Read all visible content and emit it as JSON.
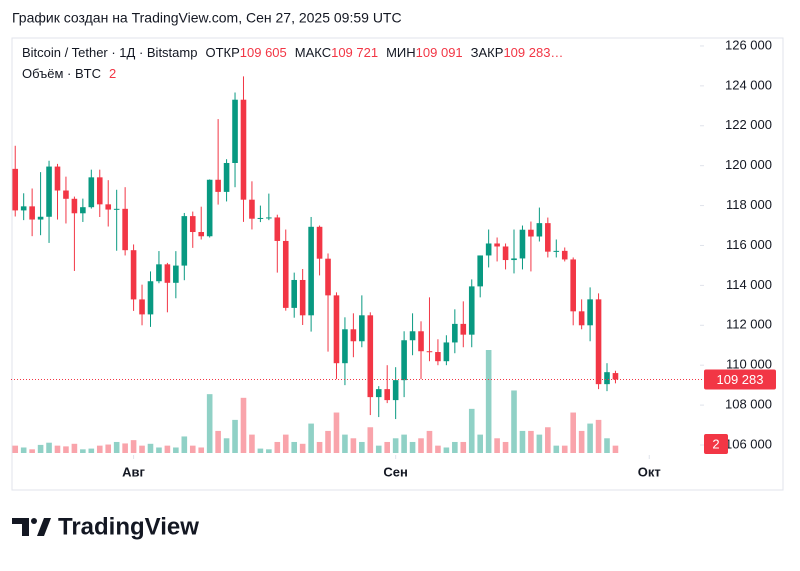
{
  "header": "График создан на TradingView.com, Сен 27, 2025 09:59 UTC",
  "footer": {
    "brand": "TradingView"
  },
  "chart_data": {
    "type": "candlestick",
    "legend": {
      "symbol": "Bitcoin / Tether · 1Д · Bitstamp",
      "open_label": "ОТКР",
      "open": "109 605",
      "high_label": "МАКС",
      "high": "109 721",
      "low_label": "МИН",
      "low": "109 091",
      "close_label": "ЗАКР",
      "close": "109 283…",
      "volume_label": "Объём · BTC"
    },
    "up_color": "#089981",
    "down_color": "#f23645",
    "open": [
      119840,
      117758,
      117961,
      117300,
      117439,
      119955,
      118755,
      118340,
      117614,
      117919,
      119415,
      118062,
      117800,
      117837,
      115764,
      113297,
      112546,
      114208,
      115055,
      114129,
      114992,
      117472,
      116675,
      116462,
      119294,
      118686,
      120134,
      123306,
      118295,
      117342,
      117380,
      117405,
      116227,
      112872,
      114271,
      112500,
      116936,
      115338,
      113500,
      110100,
      111800,
      111200,
      112500,
      108400,
      108800,
      108250,
      109250,
      111250,
      111700,
      110700,
      110660,
      110200,
      111140,
      112070,
      111530,
      113950,
      115500,
      116100,
      115950,
      115270,
      115350,
      116790,
      116450,
      117120,
      115690,
      115730,
      115300,
      112700,
      112000,
      113300,
      109050,
      109605
    ],
    "high": [
      120998,
      118616,
      118856,
      119676,
      120247,
      120090,
      119450,
      118451,
      118349,
      119800,
      119800,
      119273,
      118792,
      118922,
      116052,
      114036,
      114700,
      115720,
      115127,
      115716,
      117630,
      117700,
      117944,
      119311,
      122335,
      120324,
      123667,
      124474,
      119216,
      117999,
      118600,
      117543,
      116800,
      114640,
      114821,
      117429,
      117000,
      115600,
      113650,
      112400,
      112600,
      113500,
      112650,
      108950,
      110000,
      109900,
      111700,
      112600,
      112200,
      113400,
      111300,
      111500,
      112800,
      113200,
      114300,
      115500,
      116800,
      116400,
      116100,
      116800,
      117000,
      117200,
      117900,
      117400,
      116300,
      115900,
      115400,
      113300,
      113900,
      113600,
      110100,
      109721
    ],
    "low": [
      117453,
      117270,
      116467,
      116515,
      116128,
      117301,
      117103,
      114723,
      117179,
      117850,
      117427,
      116950,
      115736,
      115500,
      112722,
      112000,
      111920,
      114107,
      112650,
      113355,
      114259,
      115880,
      116300,
      116400,
      118050,
      118207,
      118920,
      117180,
      116803,
      117172,
      117270,
      114640,
      112732,
      112380,
      112015,
      111684,
      114500,
      110680,
      109300,
      109000,
      110400,
      110900,
      107500,
      107400,
      108100,
      107300,
      108400,
      110500,
      109300,
      110200,
      110000,
      110000,
      110600,
      110900,
      110900,
      113400,
      114900,
      115200,
      114800,
      114600,
      114800,
      114700,
      116200,
      115400,
      115400,
      115200,
      112000,
      111800,
      111200,
      108800,
      108700,
      109091
    ],
    "close": [
      117758,
      117961,
      117300,
      117439,
      119955,
      118755,
      118340,
      117614,
      117919,
      119415,
      118062,
      117800,
      117837,
      115764,
      113297,
      112546,
      114208,
      115055,
      114129,
      114992,
      117472,
      116675,
      116462,
      119294,
      118686,
      120134,
      123306,
      118295,
      117342,
      117380,
      117405,
      116227,
      112872,
      114271,
      112500,
      116936,
      115338,
      113500,
      110100,
      111800,
      111200,
      112500,
      108400,
      108800,
      108250,
      109250,
      111250,
      111700,
      110700,
      110660,
      110200,
      111140,
      112070,
      111530,
      113950,
      115500,
      116100,
      115950,
      115270,
      115350,
      116790,
      116450,
      117120,
      115690,
      115730,
      115300,
      112700,
      112000,
      113300,
      109050,
      109650,
      109283
    ],
    "volume": [
      2,
      1.5,
      1,
      2.2,
      2.8,
      2,
      1.8,
      2.5,
      1,
      1.2,
      2,
      2.3,
      3,
      2.6,
      3.5,
      2,
      2.5,
      1.5,
      2,
      1.5,
      4.5,
      2,
      1.5,
      16,
      6,
      4,
      9,
      15,
      5,
      1.2,
      1,
      3,
      5,
      3,
      2.5,
      8,
      3,
      6,
      11,
      5,
      4,
      3,
      7,
      2,
      3,
      4,
      5,
      3,
      4,
      6,
      2,
      1.5,
      3,
      3,
      12,
      5,
      28,
      4,
      3,
      17,
      6,
      6,
      5,
      7,
      2,
      2,
      11,
      6,
      8,
      9,
      4,
      2
    ],
    "xlim": [
      -0.5,
      81
    ],
    "xticks": [
      {
        "value": 14,
        "label": "Авг"
      },
      {
        "value": 45,
        "label": "Сен"
      },
      {
        "value": 75,
        "label": "Окт"
      }
    ],
    "ylim": [
      106000,
      126900
    ],
    "yticks": [
      {
        "value": 126000,
        "label": "126 000"
      },
      {
        "value": 124000,
        "label": "124 000"
      },
      {
        "value": 122000,
        "label": "122 000"
      },
      {
        "value": 120000,
        "label": "120 000"
      },
      {
        "value": 118000,
        "label": "118 000"
      },
      {
        "value": 116000,
        "label": "116 000"
      },
      {
        "value": 114000,
        "label": "114 000"
      },
      {
        "value": 112000,
        "label": "112 000"
      },
      {
        "value": 110000,
        "label": "110 000"
      },
      {
        "value": 108000,
        "label": "108 000"
      },
      {
        "value": 106000,
        "label": "106 000"
      }
    ],
    "last_price": {
      "value": 109283,
      "label": "109 283"
    }
  }
}
